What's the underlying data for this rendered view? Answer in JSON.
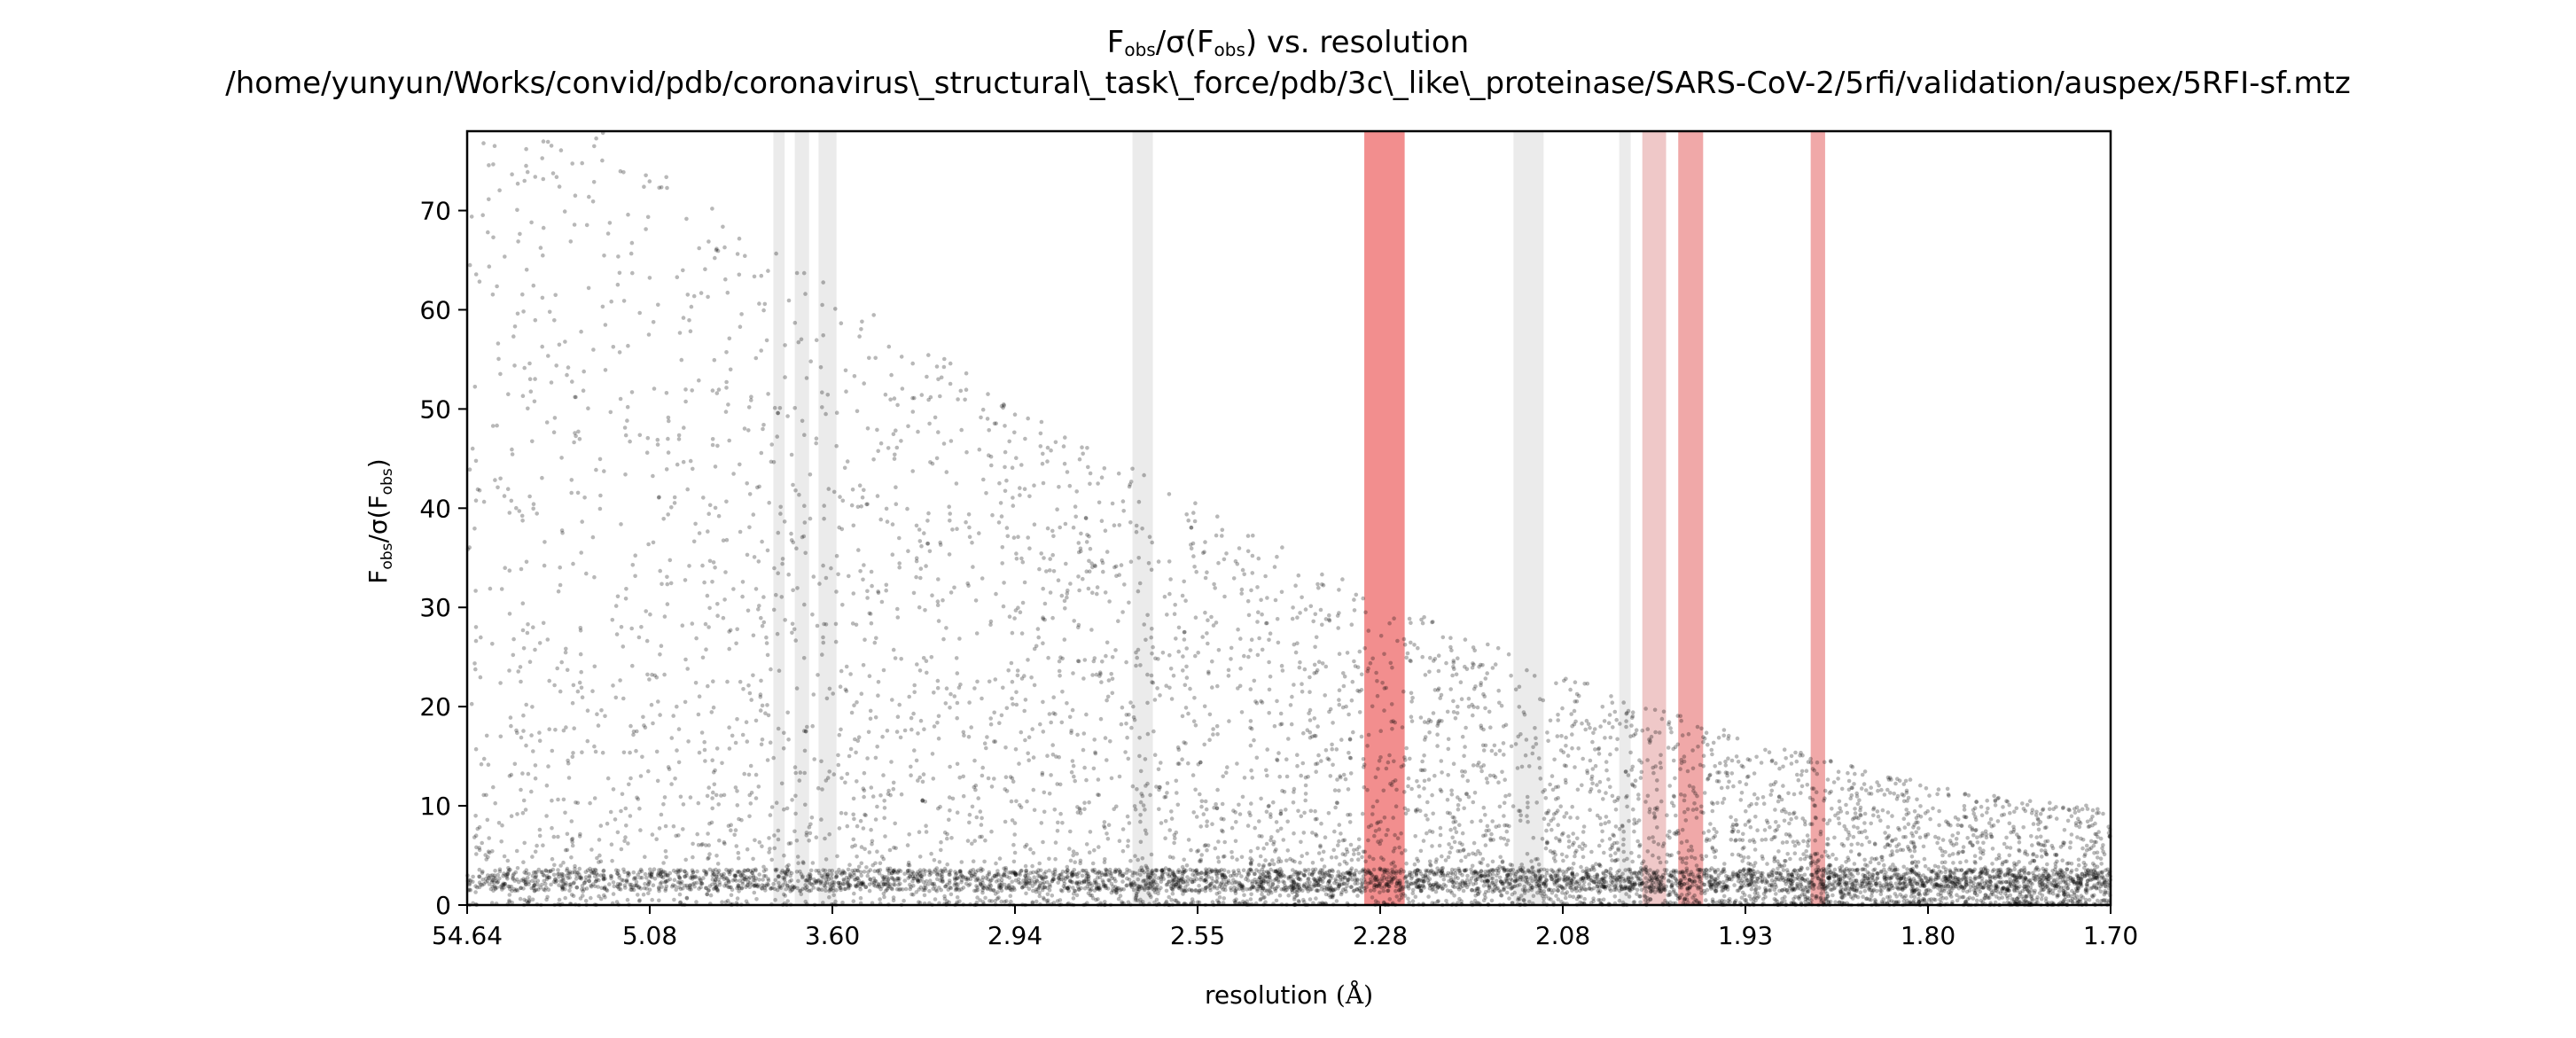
{
  "title": {
    "line1_main": "F",
    "line1_sub1": "obs",
    "line1_mid": "/σ(F",
    "line1_sub2": "obs",
    "line1_end": ") vs. resolution",
    "line2": "/home/yunyun/Works/convid/pdb/coronavirus\\_structural\\_task\\_force/pdb/3c\\_like\\_proteinase/SARS-CoV-2/5rfi/validation/auspex/5RFI-sf.mtz"
  },
  "xaxis": {
    "label": "resolution",
    "unit": "(Å)"
  },
  "yaxis": {
    "label_main": "F",
    "label_sub1": "obs",
    "label_mid": "/σ(F",
    "label_sub2": "obs",
    "label_end": ")"
  },
  "colors": {
    "points": "#000000",
    "ice_strong": "#f28e8e",
    "ice_medium": "#f0a8a8",
    "ice_light": "#efc8c8",
    "band_grey": "#ebebeb"
  },
  "chart_data": {
    "type": "scatter",
    "x_scale": "1/d^2 (reciprocal resolution squared)",
    "x_tick_labels": [
      "54.64",
      "5.08",
      "3.60",
      "2.94",
      "2.55",
      "2.28",
      "2.08",
      "1.93",
      "1.80",
      "1.70"
    ],
    "xlim_resolution": [
      54.64,
      1.7
    ],
    "ylim": [
      0,
      78
    ],
    "y_ticks": [
      0,
      10,
      20,
      30,
      40,
      50,
      60,
      70
    ],
    "grid": false,
    "highlight_bands": [
      {
        "from_res": 3.93,
        "to_res": 3.86,
        "kind": "grey"
      },
      {
        "from_res": 3.8,
        "to_res": 3.72,
        "kind": "grey"
      },
      {
        "from_res": 3.67,
        "to_res": 3.58,
        "kind": "grey"
      },
      {
        "from_res": 2.67,
        "to_res": 2.63,
        "kind": "grey"
      },
      {
        "from_res": 2.3,
        "to_res": 2.25,
        "kind": "ice_strong"
      },
      {
        "from_res": 2.13,
        "to_res": 2.1,
        "kind": "grey"
      },
      {
        "from_res": 2.03,
        "to_res": 2.02,
        "kind": "grey"
      },
      {
        "from_res": 2.01,
        "to_res": 1.99,
        "kind": "ice_light"
      },
      {
        "from_res": 1.98,
        "to_res": 1.96,
        "kind": "ice_medium"
      },
      {
        "from_res": 1.88,
        "to_res": 1.87,
        "kind": "ice_medium"
      }
    ],
    "density_description": [
      {
        "res_range": [
          54.64,
          3.9
        ],
        "fobs_sigma_typical_max": 78,
        "density": "sparse-wide"
      },
      {
        "res_range": [
          3.9,
          2.55
        ],
        "fobs_sigma_typical_max": 60,
        "density": "dense"
      },
      {
        "res_range": [
          2.55,
          2.08
        ],
        "fobs_sigma_typical_max": 35,
        "density": "dense"
      },
      {
        "res_range": [
          2.08,
          1.7
        ],
        "fobs_sigma_typical_max": 15,
        "density": "dense-low"
      }
    ],
    "baseline_value": 2.5
  }
}
